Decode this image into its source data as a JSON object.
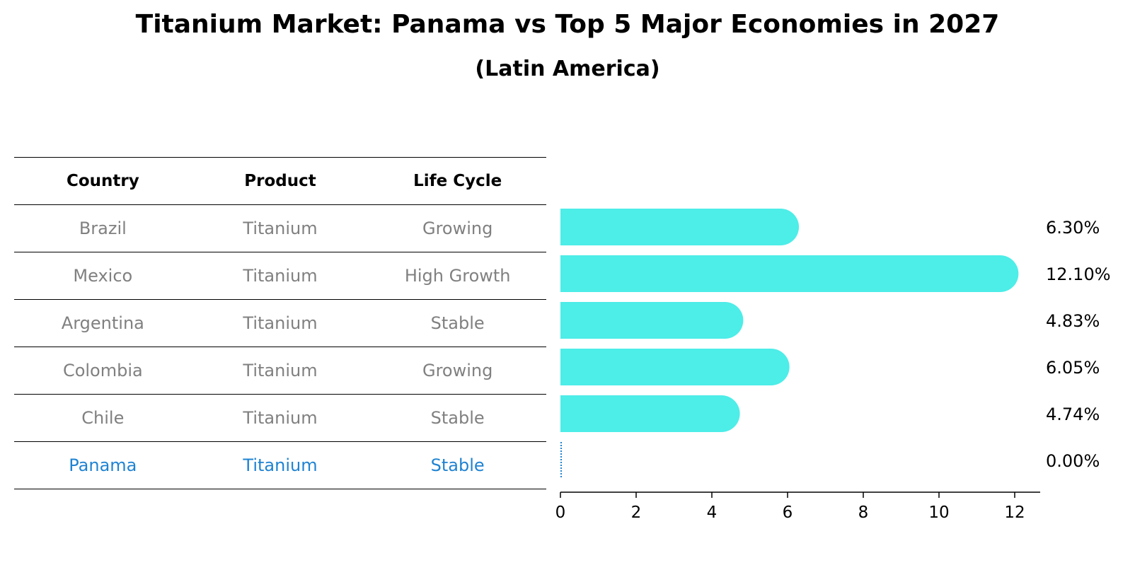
{
  "title": "Titanium Market: Panama vs Top 5 Major Economies in 2027",
  "subtitle": "(Latin America)",
  "table": {
    "headers": [
      "Country",
      "Product",
      "Life Cycle"
    ],
    "rows": [
      {
        "country": "Brazil",
        "product": "Titanium",
        "life_cycle": "Growing"
      },
      {
        "country": "Mexico",
        "product": "Titanium",
        "life_cycle": "High Growth"
      },
      {
        "country": "Argentina",
        "product": "Titanium",
        "life_cycle": "Stable"
      },
      {
        "country": "Colombia",
        "product": "Titanium",
        "life_cycle": "Growing"
      },
      {
        "country": "Chile",
        "product": "Titanium",
        "life_cycle": "Stable"
      },
      {
        "country": "Panama",
        "product": "Titanium",
        "life_cycle": "Stable"
      }
    ]
  },
  "colors": {
    "bar": "#4dede8",
    "highlight": "#1f83d2",
    "muted_text": "#808080"
  },
  "chart_data": {
    "type": "bar",
    "orientation": "horizontal",
    "categories": [
      "Brazil",
      "Mexico",
      "Argentina",
      "Colombia",
      "Chile",
      "Panama"
    ],
    "values": [
      6.3,
      12.1,
      4.83,
      6.05,
      4.74,
      0.0
    ],
    "value_labels": [
      "6.30%",
      "12.10%",
      "4.83%",
      "6.05%",
      "4.74%",
      "0.00%"
    ],
    "xlim": [
      0,
      12.6
    ],
    "xticks": [
      0,
      2,
      4,
      6,
      8,
      10,
      12
    ],
    "xlabel": "",
    "ylabel": "",
    "highlight_category": "Panama"
  }
}
